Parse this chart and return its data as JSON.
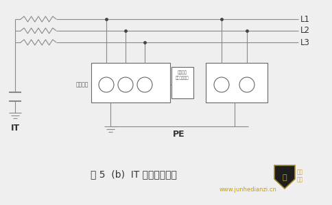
{
  "bg_color": "#efefef",
  "line_color": "#888888",
  "title": "图 5  (b)  IT 系统接地制式",
  "title_fontsize": 10,
  "label_L1": "L1",
  "label_L2": "L2",
  "label_L3": "L3",
  "label_PE": "PE",
  "label_IT": "IT",
  "label_device": "电气设备",
  "label_monitor1": "电气隔离",
  "label_monitor2": "绝缘计量部分",
  "website": "www.junhedianzi.cn"
}
